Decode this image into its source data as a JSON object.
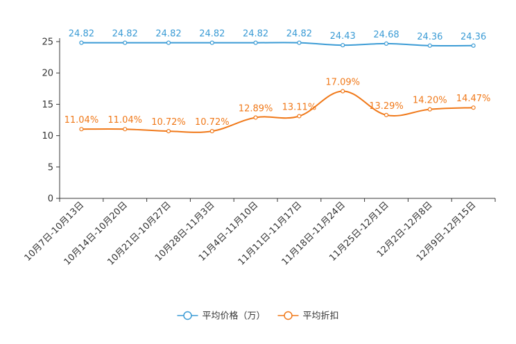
{
  "chart_data": {
    "type": "line",
    "title": "",
    "xlabel": "",
    "ylabel": "",
    "ylim": [
      0,
      25
    ],
    "yticks": [
      0,
      5,
      10,
      15,
      20,
      25
    ],
    "categories": [
      "10月7日-10月13日",
      "10月14日-10月20日",
      "10月21日-10月27日",
      "10月28日-11月3日",
      "11月4日-11月10日",
      "11月11日-11月17日",
      "11月18日-11月24日",
      "11月25日-12月1日",
      "12月2日-12月8日",
      "12月9日-12月15日"
    ],
    "series": [
      {
        "name": "平均价格（万）",
        "color": "#3a9bd5",
        "values": [
          24.82,
          24.82,
          24.82,
          24.82,
          24.82,
          24.82,
          24.43,
          24.68,
          24.36,
          24.36
        ],
        "labels": [
          "24.82",
          "24.82",
          "24.82",
          "24.82",
          "24.82",
          "24.82",
          "24.43",
          "24.68",
          "24.36",
          "24.36"
        ]
      },
      {
        "name": "平均折扣",
        "color": "#f07818",
        "values": [
          11.04,
          11.04,
          10.72,
          10.72,
          12.89,
          13.11,
          17.09,
          13.29,
          14.2,
          14.47
        ],
        "labels": [
          "11.04%",
          "11.04%",
          "10.72%",
          "10.72%",
          "12.89%",
          "13.11%",
          "17.09%",
          "13.29%",
          "14.20%",
          "14.47%"
        ]
      }
    ],
    "legend_position": "bottom-center"
  }
}
